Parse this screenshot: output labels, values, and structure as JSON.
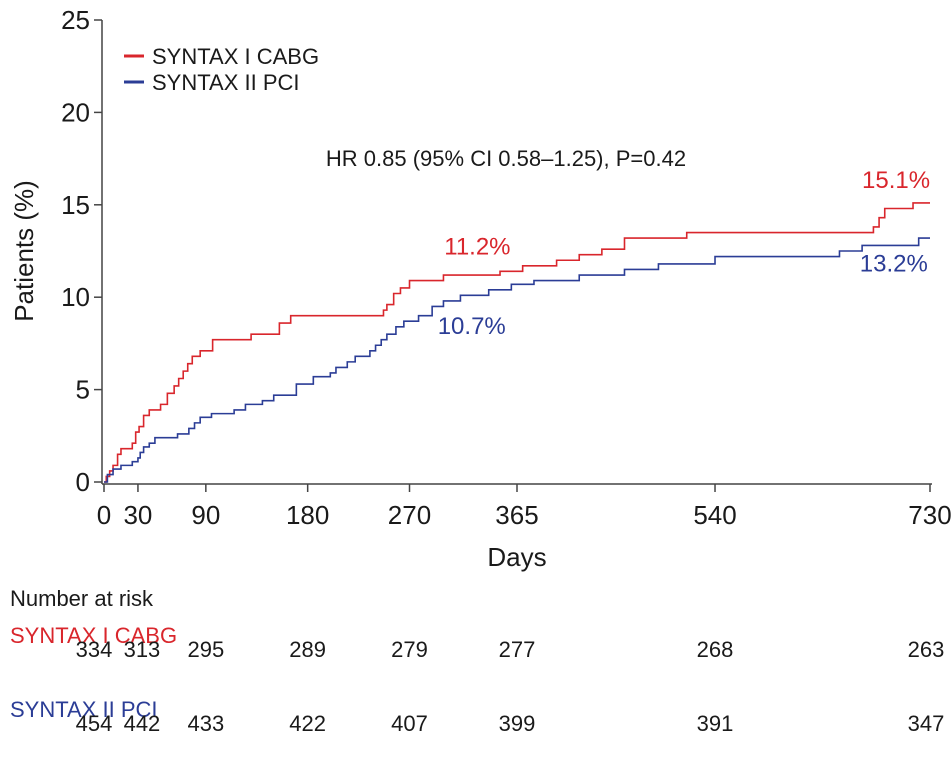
{
  "chart_data": {
    "type": "line",
    "xlabel": "Days",
    "ylabel": "Patients (%)",
    "xlim": [
      0,
      730
    ],
    "ylim": [
      0,
      25
    ],
    "x_ticks": [
      0,
      30,
      90,
      180,
      270,
      365,
      540,
      730
    ],
    "y_ticks": [
      0,
      5,
      10,
      15,
      20,
      25
    ],
    "grid": false,
    "legend_position": "top-left",
    "annotation": "HR 0.85 (95% CI 0.58–1.25), P=0.42",
    "series": [
      {
        "name": "SYNTAX I CABG",
        "color": "#d9262c",
        "points": [
          [
            0,
            0
          ],
          [
            2,
            0.3
          ],
          [
            5,
            0.6
          ],
          [
            8,
            0.9
          ],
          [
            12,
            1.5
          ],
          [
            15,
            1.8
          ],
          [
            25,
            2.1
          ],
          [
            28,
            2.7
          ],
          [
            31,
            3.0
          ],
          [
            35,
            3.6
          ],
          [
            40,
            3.9
          ],
          [
            50,
            4.2
          ],
          [
            56,
            4.8
          ],
          [
            62,
            5.2
          ],
          [
            66,
            5.6
          ],
          [
            70,
            6.0
          ],
          [
            74,
            6.4
          ],
          [
            78,
            6.8
          ],
          [
            85,
            7.1
          ],
          [
            96,
            7.7
          ],
          [
            130,
            8.0
          ],
          [
            155,
            8.6
          ],
          [
            165,
            9.0
          ],
          [
            247,
            9.3
          ],
          [
            250,
            9.6
          ],
          [
            256,
            10.2
          ],
          [
            262,
            10.5
          ],
          [
            270,
            10.9
          ],
          [
            300,
            11.2
          ],
          [
            350,
            11.4
          ],
          [
            370,
            11.7
          ],
          [
            400,
            12.0
          ],
          [
            420,
            12.3
          ],
          [
            440,
            12.6
          ],
          [
            460,
            13.2
          ],
          [
            515,
            13.5
          ],
          [
            680,
            13.8
          ],
          [
            685,
            14.3
          ],
          [
            690,
            14.8
          ],
          [
            715,
            15.1
          ],
          [
            730,
            15.1
          ]
        ]
      },
      {
        "name": "SYNTAX II PCI",
        "color": "#2b3d96",
        "points": [
          [
            0,
            0
          ],
          [
            3,
            0.4
          ],
          [
            8,
            0.7
          ],
          [
            15,
            0.9
          ],
          [
            25,
            1.1
          ],
          [
            30,
            1.3
          ],
          [
            32,
            1.6
          ],
          [
            35,
            1.9
          ],
          [
            40,
            2.1
          ],
          [
            45,
            2.4
          ],
          [
            60,
            2.4
          ],
          [
            65,
            2.6
          ],
          [
            75,
            2.9
          ],
          [
            80,
            3.2
          ],
          [
            85,
            3.5
          ],
          [
            95,
            3.7
          ],
          [
            115,
            3.9
          ],
          [
            125,
            4.2
          ],
          [
            140,
            4.4
          ],
          [
            150,
            4.7
          ],
          [
            155,
            4.7
          ],
          [
            170,
            5.3
          ],
          [
            185,
            5.7
          ],
          [
            200,
            5.9
          ],
          [
            205,
            6.2
          ],
          [
            215,
            6.5
          ],
          [
            222,
            6.8
          ],
          [
            235,
            7.1
          ],
          [
            240,
            7.4
          ],
          [
            245,
            7.7
          ],
          [
            250,
            8.0
          ],
          [
            258,
            8.4
          ],
          [
            265,
            8.7
          ],
          [
            278,
            9.0
          ],
          [
            290,
            9.5
          ],
          [
            300,
            9.8
          ],
          [
            315,
            10.1
          ],
          [
            340,
            10.4
          ],
          [
            360,
            10.7
          ],
          [
            380,
            10.9
          ],
          [
            420,
            11.2
          ],
          [
            460,
            11.5
          ],
          [
            490,
            11.8
          ],
          [
            540,
            12.2
          ],
          [
            650,
            12.5
          ],
          [
            670,
            12.8
          ],
          [
            720,
            13.2
          ],
          [
            730,
            13.2
          ]
        ]
      }
    ],
    "labels": [
      {
        "text": "11.2%",
        "x": 330,
        "y": 12.3,
        "series": 0
      },
      {
        "text": "15.1%",
        "x": 700,
        "y": 15.9,
        "series": 0
      },
      {
        "text": "10.7%",
        "x": 325,
        "y": 8.0,
        "series": 1
      },
      {
        "text": "13.2%",
        "x": 698,
        "y": 11.4,
        "series": 1
      }
    ]
  },
  "risk_table": {
    "title": "Number at risk",
    "x": [
      0,
      30,
      90,
      180,
      270,
      365,
      540,
      730
    ],
    "groups": [
      {
        "label": "SYNTAX I CABG",
        "color": "#d9262c",
        "values": [
          "334",
          "313",
          "295",
          "289",
          "279",
          "277",
          "268",
          "263"
        ]
      },
      {
        "label": "SYNTAX II PCI",
        "color": "#2b3d96",
        "values": [
          "454",
          "442",
          "433",
          "422",
          "407",
          "399",
          "391",
          "347"
        ]
      }
    ]
  }
}
